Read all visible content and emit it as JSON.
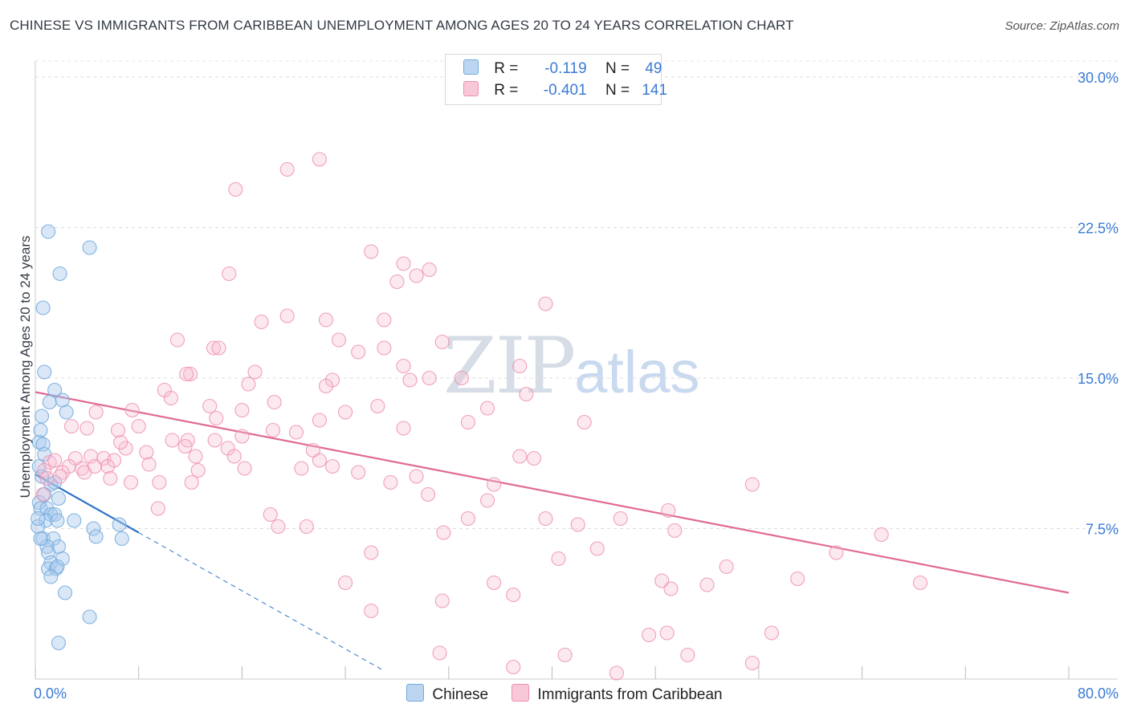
{
  "title": "CHINESE VS IMMIGRANTS FROM CARIBBEAN UNEMPLOYMENT AMONG AGES 20 TO 24 YEARS CORRELATION CHART",
  "source": "Source: ZipAtlas.com",
  "watermark": {
    "zip": "ZIP",
    "atlas": "atlas"
  },
  "legend": {
    "r_label": "R =",
    "n_label": "N =",
    "series": [
      {
        "name": "Chinese",
        "r": "-0.119",
        "n": "49",
        "color": "#6fa8dc"
      },
      {
        "name": "Immigrants from Caribbean",
        "r": "-0.401",
        "n": "141",
        "color": "#ee8fb0"
      }
    ]
  },
  "chart_data": {
    "type": "scatter",
    "title": "CHINESE VS IMMIGRANTS FROM CARIBBEAN UNEMPLOYMENT AMONG AGES 20 TO 24 YEARS CORRELATION CHART",
    "xlabel": "",
    "ylabel": "Unemployment Among Ages 20 to 24 years",
    "xlim": [
      0,
      80
    ],
    "ylim": [
      0,
      30.8
    ],
    "x_tick_labels": [
      "0.0%",
      "80.0%"
    ],
    "y_ticks": [
      7.5,
      15.0,
      22.5,
      30.0
    ],
    "y_tick_labels": [
      "7.5%",
      "15.0%",
      "22.5%",
      "30.0%"
    ],
    "grid": true,
    "series": [
      {
        "name": "Chinese",
        "color": "#6fa8dc",
        "trend": {
          "x0": 0.0,
          "y0": 10.2,
          "x1": 8.0,
          "y1": 7.3,
          "dash_to_x": 27.0
        },
        "points": [
          [
            1.0,
            22.3
          ],
          [
            4.2,
            21.5
          ],
          [
            1.9,
            20.2
          ],
          [
            0.6,
            18.5
          ],
          [
            0.7,
            15.3
          ],
          [
            1.5,
            14.4
          ],
          [
            1.1,
            13.8
          ],
          [
            2.1,
            13.9
          ],
          [
            0.5,
            13.1
          ],
          [
            2.4,
            13.3
          ],
          [
            0.4,
            12.4
          ],
          [
            0.3,
            11.8
          ],
          [
            0.6,
            11.7
          ],
          [
            0.7,
            11.2
          ],
          [
            0.3,
            10.6
          ],
          [
            0.5,
            10.1
          ],
          [
            1.2,
            9.7
          ],
          [
            0.7,
            9.2
          ],
          [
            1.8,
            9.0
          ],
          [
            0.3,
            8.8
          ],
          [
            0.4,
            8.5
          ],
          [
            0.9,
            8.5
          ],
          [
            1.2,
            8.2
          ],
          [
            1.5,
            8.2
          ],
          [
            0.8,
            7.9
          ],
          [
            1.7,
            7.9
          ],
          [
            0.2,
            7.6
          ],
          [
            4.5,
            7.5
          ],
          [
            0.6,
            7.0
          ],
          [
            1.4,
            7.0
          ],
          [
            4.7,
            7.1
          ],
          [
            6.7,
            7.0
          ],
          [
            1.8,
            6.6
          ],
          [
            0.9,
            6.6
          ],
          [
            1.0,
            6.3
          ],
          [
            2.1,
            6.0
          ],
          [
            1.2,
            5.8
          ],
          [
            1.0,
            5.5
          ],
          [
            1.6,
            5.5
          ],
          [
            1.7,
            5.6
          ],
          [
            1.2,
            5.1
          ],
          [
            2.3,
            4.3
          ],
          [
            4.2,
            3.1
          ],
          [
            1.8,
            1.8
          ],
          [
            0.2,
            8.0
          ],
          [
            0.4,
            7.0
          ],
          [
            1.5,
            9.8
          ],
          [
            3.0,
            7.9
          ],
          [
            6.5,
            7.7
          ]
        ]
      },
      {
        "name": "Immigrants from Caribbean",
        "color": "#ee8fb0",
        "trend": {
          "x0": 0.0,
          "y0": 14.3,
          "x1": 80.0,
          "y1": 4.3
        },
        "points": [
          [
            22.0,
            25.9
          ],
          [
            19.5,
            25.4
          ],
          [
            15.5,
            24.4
          ],
          [
            26.0,
            21.3
          ],
          [
            28.5,
            20.7
          ],
          [
            30.5,
            20.4
          ],
          [
            29.5,
            20.1
          ],
          [
            15.0,
            20.2
          ],
          [
            28.0,
            19.8
          ],
          [
            39.5,
            18.7
          ],
          [
            19.5,
            18.1
          ],
          [
            17.5,
            17.8
          ],
          [
            22.5,
            17.9
          ],
          [
            27.0,
            17.9
          ],
          [
            11.0,
            16.9
          ],
          [
            23.5,
            16.9
          ],
          [
            31.5,
            16.8
          ],
          [
            13.8,
            16.5
          ],
          [
            27.0,
            16.5
          ],
          [
            14.2,
            16.5
          ],
          [
            25.0,
            16.3
          ],
          [
            12.0,
            15.2
          ],
          [
            11.7,
            15.2
          ],
          [
            28.5,
            15.6
          ],
          [
            37.5,
            15.6
          ],
          [
            17.0,
            15.3
          ],
          [
            23.0,
            14.9
          ],
          [
            16.5,
            14.7
          ],
          [
            29.0,
            14.9
          ],
          [
            30.5,
            15.0
          ],
          [
            10.0,
            14.4
          ],
          [
            33.0,
            15.0
          ],
          [
            22.5,
            14.6
          ],
          [
            10.5,
            14.0
          ],
          [
            18.5,
            13.8
          ],
          [
            38.0,
            14.2
          ],
          [
            16.0,
            13.4
          ],
          [
            26.5,
            13.6
          ],
          [
            13.5,
            13.6
          ],
          [
            35.0,
            13.5
          ],
          [
            24.0,
            13.3
          ],
          [
            7.5,
            13.4
          ],
          [
            4.7,
            13.3
          ],
          [
            14.0,
            13.0
          ],
          [
            22.0,
            12.9
          ],
          [
            33.5,
            12.8
          ],
          [
            42.5,
            12.8
          ],
          [
            8.0,
            12.6
          ],
          [
            2.8,
            12.6
          ],
          [
            4.0,
            12.5
          ],
          [
            6.4,
            12.4
          ],
          [
            16.0,
            12.1
          ],
          [
            18.4,
            12.4
          ],
          [
            20.2,
            12.3
          ],
          [
            11.8,
            11.9
          ],
          [
            28.5,
            12.5
          ],
          [
            10.6,
            11.9
          ],
          [
            13.9,
            11.9
          ],
          [
            14.9,
            11.5
          ],
          [
            21.5,
            11.4
          ],
          [
            7.0,
            11.5
          ],
          [
            8.6,
            11.3
          ],
          [
            11.6,
            11.6
          ],
          [
            15.4,
            11.1
          ],
          [
            3.1,
            11.0
          ],
          [
            4.3,
            11.1
          ],
          [
            5.3,
            11.0
          ],
          [
            6.1,
            10.9
          ],
          [
            12.4,
            11.1
          ],
          [
            22.0,
            10.9
          ],
          [
            37.5,
            11.1
          ],
          [
            38.6,
            11.0
          ],
          [
            1.1,
            10.8
          ],
          [
            2.6,
            10.6
          ],
          [
            3.6,
            10.5
          ],
          [
            5.6,
            10.6
          ],
          [
            16.2,
            10.5
          ],
          [
            20.6,
            10.5
          ],
          [
            23.0,
            10.6
          ],
          [
            0.7,
            10.4
          ],
          [
            2.1,
            10.3
          ],
          [
            12.6,
            10.4
          ],
          [
            25.0,
            10.3
          ],
          [
            29.5,
            10.1
          ],
          [
            4.6,
            10.6
          ],
          [
            1.9,
            10.1
          ],
          [
            0.9,
            10.0
          ],
          [
            5.8,
            10.0
          ],
          [
            7.4,
            9.8
          ],
          [
            9.6,
            9.8
          ],
          [
            12.1,
            9.8
          ],
          [
            27.5,
            9.8
          ],
          [
            35.5,
            9.7
          ],
          [
            55.5,
            9.7
          ],
          [
            0.6,
            9.2
          ],
          [
            30.4,
            9.2
          ],
          [
            35.0,
            8.9
          ],
          [
            9.5,
            8.5
          ],
          [
            49.0,
            8.4
          ],
          [
            18.2,
            8.2
          ],
          [
            39.5,
            8.0
          ],
          [
            45.3,
            8.0
          ],
          [
            33.5,
            8.0
          ],
          [
            42.0,
            7.7
          ],
          [
            18.8,
            7.6
          ],
          [
            21.0,
            7.6
          ],
          [
            49.5,
            7.4
          ],
          [
            31.6,
            7.3
          ],
          [
            65.5,
            7.2
          ],
          [
            26.0,
            6.3
          ],
          [
            43.5,
            6.5
          ],
          [
            40.5,
            6.0
          ],
          [
            62.0,
            6.3
          ],
          [
            53.5,
            5.6
          ],
          [
            59.0,
            5.0
          ],
          [
            48.5,
            4.9
          ],
          [
            24.0,
            4.8
          ],
          [
            35.5,
            4.8
          ],
          [
            49.2,
            4.5
          ],
          [
            52.0,
            4.7
          ],
          [
            68.5,
            4.8
          ],
          [
            37.0,
            4.2
          ],
          [
            31.5,
            3.9
          ],
          [
            26.0,
            3.4
          ],
          [
            57.0,
            2.3
          ],
          [
            47.5,
            2.2
          ],
          [
            48.9,
            2.3
          ],
          [
            31.3,
            1.3
          ],
          [
            41.0,
            1.2
          ],
          [
            50.5,
            1.2
          ],
          [
            37.0,
            0.6
          ],
          [
            55.5,
            0.8
          ],
          [
            45.0,
            0.3
          ],
          [
            1.5,
            10.9
          ],
          [
            3.8,
            10.3
          ],
          [
            6.6,
            11.8
          ],
          [
            8.8,
            10.7
          ]
        ]
      }
    ]
  }
}
